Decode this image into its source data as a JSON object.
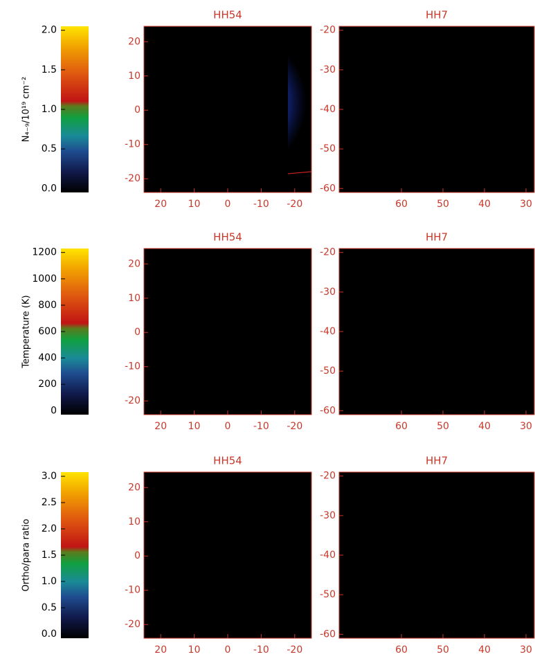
{
  "chart_data": [
    {
      "type": "colorbar",
      "ylabel": "N₄₋₉/10¹⁹ cm⁻²",
      "ylim": [
        -0.05,
        2.05
      ],
      "yticks": [
        {
          "value": 0,
          "label": "0.0"
        },
        0.5,
        {
          "value": 1,
          "label": "1.0"
        },
        1.5,
        {
          "value": 2,
          "label": "2.0"
        }
      ]
    },
    {
      "type": "map",
      "title": "HH54",
      "xlim": [
        25,
        -25
      ],
      "ylim": [
        -24,
        24.5
      ],
      "xticks": [
        20,
        10,
        0,
        -10,
        -20
      ],
      "yticks": [
        20,
        10,
        0,
        -10,
        -20
      ]
    },
    {
      "type": "map",
      "title": "HH7",
      "xlim": [
        75,
        28
      ],
      "ylim": [
        -61,
        -19
      ],
      "xticks": [
        60,
        50,
        40,
        30
      ],
      "yticks": [
        -20,
        -30,
        -40,
        -50,
        -60
      ]
    },
    {
      "type": "colorbar",
      "ylabel": "Temperature (K)",
      "ylim": [
        -30,
        1230
      ],
      "yticks": [
        0,
        200,
        400,
        600,
        800,
        1000,
        1200
      ]
    },
    {
      "type": "map",
      "title": "HH54",
      "xlim": [
        25,
        -25
      ],
      "ylim": [
        -24,
        24.5
      ],
      "xticks": [
        20,
        10,
        0,
        -10,
        -20
      ],
      "yticks": [
        20,
        10,
        0,
        -10,
        -20
      ]
    },
    {
      "type": "map",
      "title": "HH7",
      "xlim": [
        75,
        28
      ],
      "ylim": [
        -61,
        -19
      ],
      "xticks": [
        60,
        50,
        40,
        30
      ],
      "yticks": [
        -20,
        -30,
        -40,
        -50,
        -60
      ]
    },
    {
      "type": "colorbar",
      "ylabel": "Ortho/para ratio",
      "ylim": [
        -0.08,
        3.08
      ],
      "yticks": [
        {
          "value": 0,
          "label": "0.0"
        },
        0.5,
        {
          "value": 1,
          "label": "1.0"
        },
        1.5,
        {
          "value": 2,
          "label": "2.0"
        },
        2.5,
        {
          "value": 3,
          "label": "3.0"
        }
      ]
    },
    {
      "type": "map",
      "title": "HH54",
      "xlim": [
        25,
        -25
      ],
      "ylim": [
        -24,
        24.5
      ],
      "xticks": [
        20,
        10,
        0,
        -10,
        -20
      ],
      "yticks": [
        20,
        10,
        0,
        -10,
        -20
      ]
    },
    {
      "type": "map",
      "title": "HH7",
      "xlim": [
        75,
        28
      ],
      "ylim": [
        -61,
        -19
      ],
      "xticks": [
        60,
        50,
        40,
        30
      ],
      "yticks": [
        -20,
        -30,
        -40,
        -50,
        -60
      ]
    }
  ]
}
